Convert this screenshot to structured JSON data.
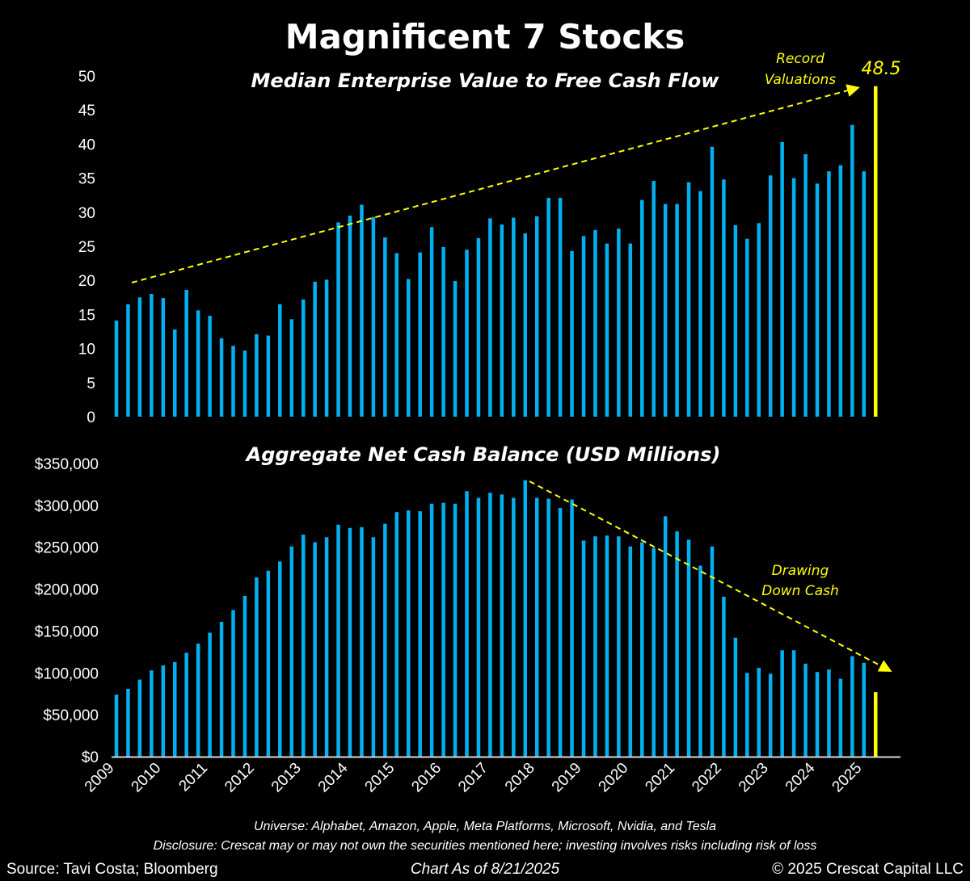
{
  "title": "Magnificent 7 Stocks",
  "colors": {
    "bar": "#00b0f0",
    "highlight": "#ffff00",
    "background": "#000000",
    "text": "#ffffff"
  },
  "chart_data": [
    {
      "type": "bar",
      "title": "Median Enterprise Value to Free Cash Flow",
      "ylim": [
        0,
        50
      ],
      "yticks": [
        "0",
        "5",
        "10",
        "15",
        "20",
        "25",
        "30",
        "35",
        "40",
        "45",
        "50"
      ],
      "frequency": "quarterly, 2009 Q1 to 2025 Q3",
      "values": [
        14.1,
        16.5,
        17.5,
        18,
        17.4,
        12.8,
        18.6,
        15.6,
        14.8,
        11.5,
        10.4,
        9.7,
        12.1,
        11.9,
        16.5,
        14.3,
        17.2,
        19.8,
        20.1,
        28.5,
        29.5,
        31.1,
        29.3,
        26.3,
        24,
        20.2,
        24.1,
        27.8,
        24.9,
        19.9,
        24.5,
        26.2,
        29.1,
        28.2,
        29.2,
        26.9,
        29.4,
        32.1,
        32.1,
        24.3,
        26.5,
        27.4,
        25.4,
        27.6,
        25.4,
        31.8,
        34.6,
        31.2,
        31.2,
        34.4,
        33.1,
        39.6,
        34.8,
        28.1,
        26.1,
        28.4,
        35.4,
        40.3,
        35,
        38.5,
        34.2,
        36,
        36.9,
        42.8,
        36,
        48.5
      ],
      "highlight_last": true,
      "last_label": "48.5",
      "annotation": [
        "Record",
        "Valuations"
      ],
      "trend": "dashed yellow arrow, rising"
    },
    {
      "type": "bar",
      "title": "Aggregate Net Cash Balance (USD Millions)",
      "ylim": [
        0,
        350000
      ],
      "yticks": [
        "$0",
        "$50,000",
        "$100,000",
        "$150,000",
        "$200,000",
        "$250,000",
        "$300,000",
        "$350,000"
      ],
      "xticks": [
        "2009",
        "2010",
        "2011",
        "2012",
        "2013",
        "2014",
        "2015",
        "2016",
        "2017",
        "2018",
        "2019",
        "2020",
        "2021",
        "2022",
        "2023",
        "2024",
        "2025"
      ],
      "values": [
        74000,
        81000,
        92000,
        103000,
        109000,
        113000,
        124000,
        135000,
        148000,
        161000,
        175000,
        192000,
        214000,
        222000,
        233000,
        251000,
        265000,
        256000,
        262000,
        277000,
        273000,
        274000,
        262000,
        278000,
        292000,
        294000,
        293000,
        302000,
        303000,
        302000,
        317000,
        309000,
        315000,
        313000,
        309000,
        330000,
        309000,
        308000,
        297000,
        307000,
        258000,
        263000,
        264000,
        263000,
        251000,
        256000,
        249000,
        287000,
        269000,
        259000,
        228000,
        251000,
        191000,
        142000,
        100000,
        106000,
        99000,
        127000,
        127000,
        111000,
        101000,
        104000,
        93000,
        120000,
        112000,
        77000
      ],
      "highlight_last": true,
      "annotation": [
        "Drawing",
        "Down Cash"
      ],
      "trend": "dashed yellow arrow, falling"
    }
  ],
  "footer": {
    "universe": "Universe: Alphabet, Amazon, Apple, Meta Platforms, Microsoft, Nvidia, and Tesla",
    "disclosure": "Disclosure: Crescat may or may not own the securities mentioned here; investing involves risks including risk of loss",
    "source": "Source: Tavi Costa; Bloomberg",
    "date": "Chart As of 8/21/2025",
    "copyright": "© 2025 Crescat Capital LLC"
  }
}
